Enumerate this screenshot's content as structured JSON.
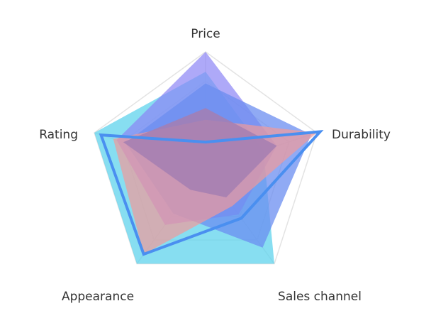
{
  "chart_data": {
    "type": "radar",
    "indicators": [
      {
        "name": "Price",
        "max": 100
      },
      {
        "name": "Durability",
        "max": 100
      },
      {
        "name": "Sales channel",
        "max": 100
      },
      {
        "name": "Appearance",
        "max": 100
      },
      {
        "name": "Rating",
        "max": 100
      }
    ],
    "grid_levels": 4,
    "series": [
      {
        "values": [
          83,
          52,
          100,
          100,
          100
        ],
        "color": "#5fd3ec",
        "fill_opacity": 0.75,
        "line": false
      },
      {
        "values": [
          100,
          64,
          48,
          59,
          80
        ],
        "color": "#8b84f5",
        "fill_opacity": 0.7,
        "line": false
      },
      {
        "values": [
          73,
          95,
          83,
          47,
          72
        ],
        "color": "#6b8df0",
        "fill_opacity": 0.75,
        "line": false
      },
      {
        "values": [
          42,
          100,
          39,
          90,
          83
        ],
        "color": "#f19a9a",
        "fill_opacity": 0.7,
        "line": false
      },
      {
        "values": [
          52,
          64,
          30,
          22,
          74
        ],
        "color": "#a57eb2",
        "fill_opacity": 0.85,
        "line": false
      },
      {
        "values": [
          23,
          103,
          52,
          90,
          94
        ],
        "color": "#4a8ff0",
        "fill_opacity": 0,
        "line": true
      }
    ]
  }
}
